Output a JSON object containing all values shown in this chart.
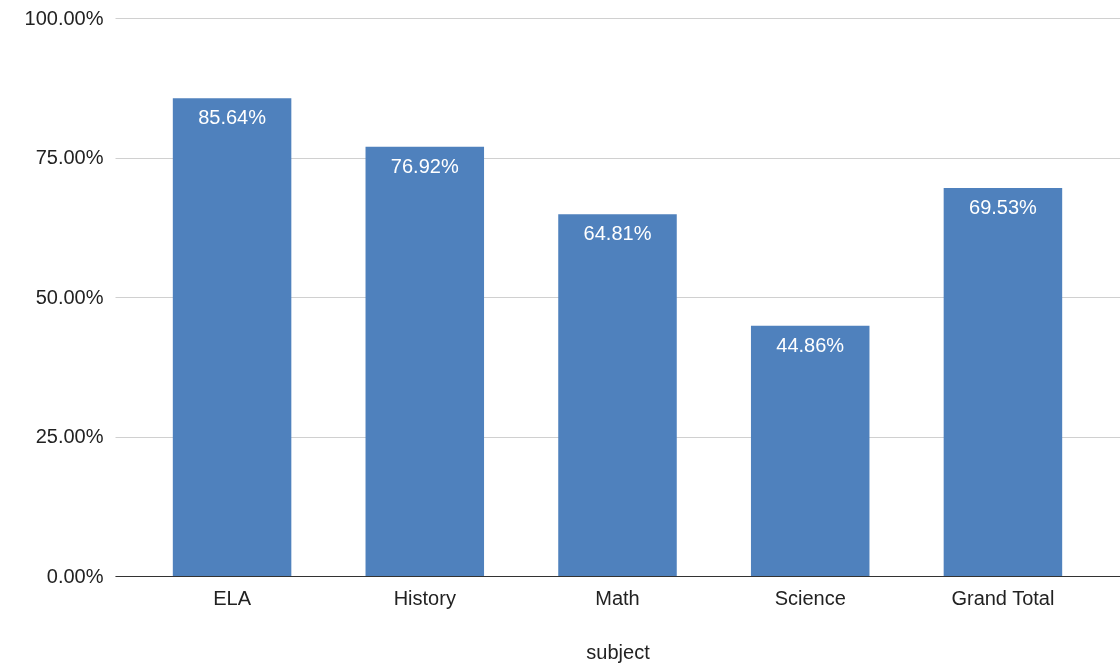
{
  "chart_data": {
    "type": "bar",
    "xlabel": "subject",
    "categories": [
      "ELA",
      "History",
      "Math",
      "Science",
      "Grand Total"
    ],
    "values": [
      85.64,
      76.92,
      64.81,
      44.86,
      69.53
    ],
    "value_labels": [
      "85.64%",
      "76.92%",
      "64.81%",
      "44.86%",
      "69.53%"
    ],
    "color": "#4f81bd",
    "ylim": [
      0,
      100
    ],
    "yticks": [
      {
        "value": 0,
        "label": "0.00%"
      },
      {
        "value": 25,
        "label": "25.00%"
      },
      {
        "value": 50,
        "label": "50.00%"
      },
      {
        "value": 75,
        "label": "75.00%"
      },
      {
        "value": 100,
        "label": "100.00%"
      }
    ],
    "grid": "y"
  }
}
